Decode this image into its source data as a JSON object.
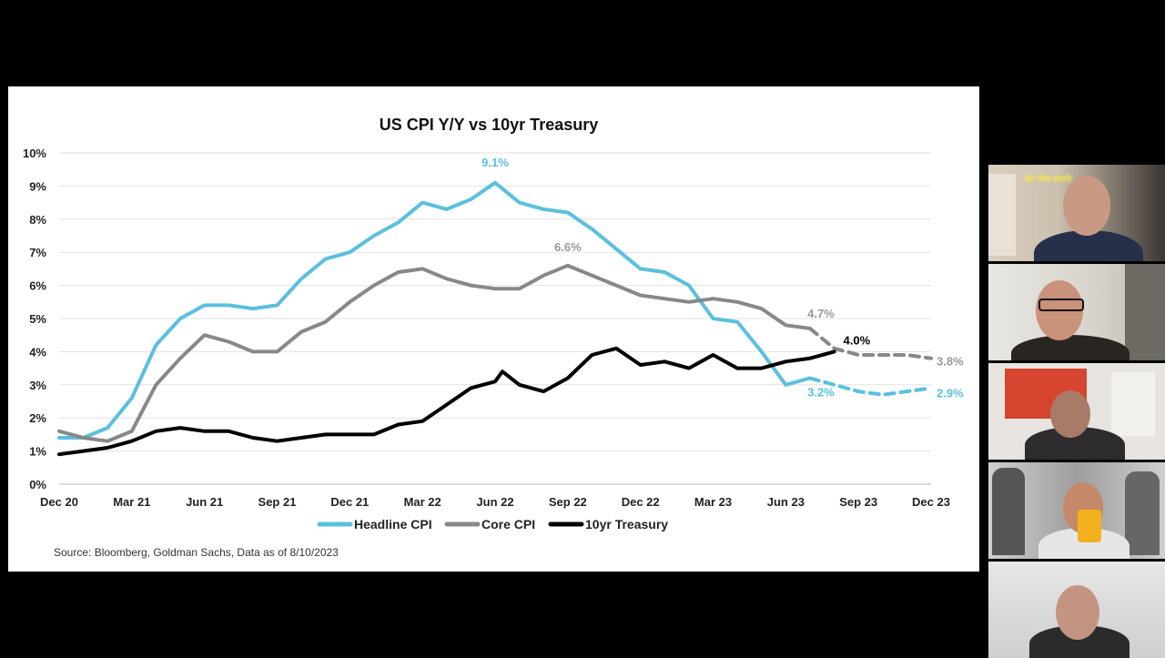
{
  "chart_data": {
    "type": "line",
    "title": "US CPI Y/Y vs 10yr Treasury",
    "x_ticks": [
      "Dec 20",
      "Mar 21",
      "Jun 21",
      "Sep 21",
      "Dec 21",
      "Mar 22",
      "Jun 22",
      "Sep 22",
      "Dec 22",
      "Mar 23",
      "Jun 23",
      "Sep 23",
      "Dec 23"
    ],
    "y_ticks": [
      "0%",
      "1%",
      "2%",
      "3%",
      "4%",
      "5%",
      "6%",
      "7%",
      "8%",
      "9%",
      "10%"
    ],
    "ylim": [
      0,
      10
    ],
    "grid": true,
    "legend_position": "bottom",
    "series": [
      {
        "name": "Headline CPI",
        "color": "#5bc0de",
        "actual": [
          [
            0,
            1.4
          ],
          [
            1,
            1.4
          ],
          [
            2,
            1.7
          ],
          [
            3,
            2.6
          ],
          [
            4,
            4.2
          ],
          [
            5,
            5.0
          ],
          [
            6,
            5.4
          ],
          [
            7,
            5.4
          ],
          [
            8,
            5.3
          ],
          [
            9,
            5.4
          ],
          [
            10,
            6.2
          ],
          [
            11,
            6.8
          ],
          [
            12,
            7.0
          ],
          [
            13,
            7.5
          ],
          [
            14,
            7.9
          ],
          [
            15,
            8.5
          ],
          [
            16,
            8.3
          ],
          [
            17,
            8.6
          ],
          [
            18,
            9.1
          ],
          [
            19,
            8.5
          ],
          [
            20,
            8.3
          ],
          [
            21,
            8.2
          ],
          [
            22,
            7.7
          ],
          [
            23,
            7.1
          ],
          [
            24,
            6.5
          ],
          [
            25,
            6.4
          ],
          [
            26,
            6.0
          ],
          [
            27,
            5.0
          ],
          [
            28,
            4.9
          ],
          [
            29,
            4.0
          ],
          [
            30,
            3.0
          ],
          [
            31,
            3.2
          ]
        ],
        "forecast": [
          [
            31,
            3.2
          ],
          [
            32,
            3.0
          ],
          [
            33,
            2.8
          ],
          [
            34,
            2.7
          ],
          [
            35,
            2.8
          ],
          [
            36,
            2.9
          ]
        ]
      },
      {
        "name": "Core CPI",
        "color": "#888888",
        "actual": [
          [
            0,
            1.6
          ],
          [
            1,
            1.4
          ],
          [
            2,
            1.3
          ],
          [
            3,
            1.6
          ],
          [
            4,
            3.0
          ],
          [
            5,
            3.8
          ],
          [
            6,
            4.5
          ],
          [
            7,
            4.3
          ],
          [
            8,
            4.0
          ],
          [
            9,
            4.0
          ],
          [
            10,
            4.6
          ],
          [
            11,
            4.9
          ],
          [
            12,
            5.5
          ],
          [
            13,
            6.0
          ],
          [
            14,
            6.4
          ],
          [
            15,
            6.5
          ],
          [
            16,
            6.2
          ],
          [
            17,
            6.0
          ],
          [
            18,
            5.9
          ],
          [
            19,
            5.9
          ],
          [
            20,
            6.3
          ],
          [
            21,
            6.6
          ],
          [
            22,
            6.3
          ],
          [
            23,
            6.0
          ],
          [
            24,
            5.7
          ],
          [
            25,
            5.6
          ],
          [
            26,
            5.5
          ],
          [
            27,
            5.6
          ],
          [
            28,
            5.5
          ],
          [
            29,
            5.3
          ],
          [
            30,
            4.8
          ],
          [
            31,
            4.7
          ]
        ],
        "forecast": [
          [
            31,
            4.7
          ],
          [
            32,
            4.1
          ],
          [
            33,
            3.9
          ],
          [
            34,
            3.9
          ],
          [
            35,
            3.9
          ],
          [
            36,
            3.8
          ]
        ]
      },
      {
        "name": "10yr Treasury",
        "color": "#000000",
        "actual": [
          [
            0,
            0.9
          ],
          [
            1,
            1.0
          ],
          [
            2,
            1.1
          ],
          [
            3,
            1.3
          ],
          [
            4,
            1.6
          ],
          [
            5,
            1.7
          ],
          [
            6,
            1.6
          ],
          [
            7,
            1.6
          ],
          [
            8,
            1.4
          ],
          [
            9,
            1.3
          ],
          [
            10,
            1.4
          ],
          [
            11,
            1.5
          ],
          [
            12,
            1.5
          ],
          [
            13,
            1.5
          ],
          [
            14,
            1.8
          ],
          [
            15,
            1.9
          ],
          [
            16,
            2.4
          ],
          [
            17,
            2.9
          ],
          [
            18,
            3.1
          ],
          [
            18.3,
            3.4
          ],
          [
            19,
            3.0
          ],
          [
            20,
            2.8
          ],
          [
            21,
            3.2
          ],
          [
            22,
            3.9
          ],
          [
            23,
            4.1
          ],
          [
            24,
            3.6
          ],
          [
            25,
            3.7
          ],
          [
            26,
            3.5
          ],
          [
            27,
            3.9
          ],
          [
            28,
            3.5
          ],
          [
            29,
            3.5
          ],
          [
            30,
            3.7
          ],
          [
            31,
            3.8
          ],
          [
            32,
            4.0
          ]
        ]
      }
    ],
    "annotations": [
      {
        "text": "9.1%",
        "x": 18,
        "y": 9.1,
        "series": "Headline CPI"
      },
      {
        "text": "6.6%",
        "x": 21,
        "y": 6.6,
        "series": "Core CPI"
      },
      {
        "text": "4.7%",
        "x": 31,
        "y": 4.7,
        "series": "Core CPI"
      },
      {
        "text": "4.0%",
        "x": 32,
        "y": 4.0,
        "series": "10yr Treasury"
      },
      {
        "text": "3.8%",
        "x": 36,
        "y": 3.8,
        "series": "Core CPI"
      },
      {
        "text": "3.2%",
        "x": 31,
        "y": 3.2,
        "series": "Headline CPI"
      },
      {
        "text": "2.9%",
        "x": 36,
        "y": 2.9,
        "series": "Headline CPI"
      }
    ],
    "source": "Source: Bloomberg, Goldman Sachs, Data as of 8/10/2023"
  },
  "video_tiles": [
    {
      "name": "participant-1",
      "neon_text": "do the work"
    },
    {
      "name": "participant-2"
    },
    {
      "name": "participant-3"
    },
    {
      "name": "participant-4"
    },
    {
      "name": "participant-5"
    }
  ]
}
